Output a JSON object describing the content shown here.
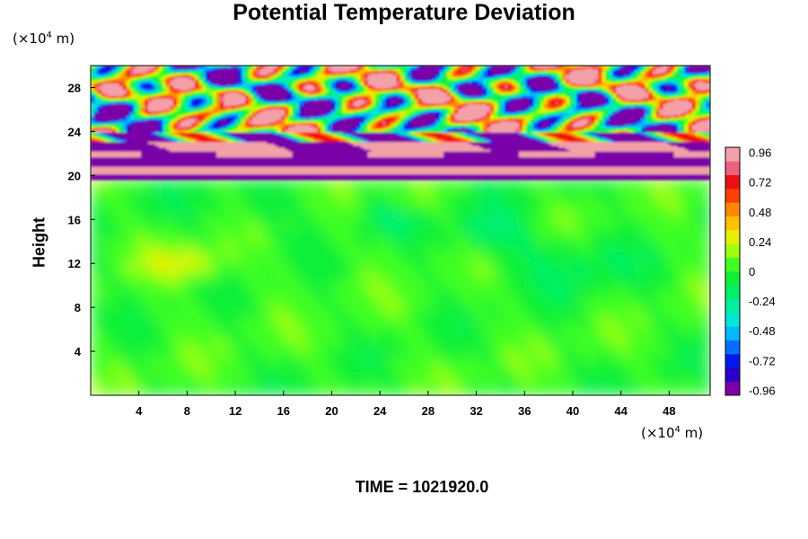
{
  "chart_data": {
    "type": "heatmap",
    "title": "Potential Temperature Deviation",
    "ylabel": "Height",
    "y_unit": [
      "(×10",
      "4",
      " m)"
    ],
    "x_unit": [
      "(×10",
      "4",
      " m)"
    ],
    "xlim": [
      0,
      51.4
    ],
    "ylim": [
      0,
      30
    ],
    "x_ticks": [
      "4",
      "8",
      "12",
      "16",
      "20",
      "24",
      "28",
      "32",
      "36",
      "40",
      "44",
      "48"
    ],
    "y_ticks": [
      "4",
      "8",
      "12",
      "16",
      "20",
      "24",
      "28"
    ],
    "colorbar": {
      "range": [
        -1.0,
        1.0
      ],
      "tick_labels": [
        "0.96",
        "0.72",
        "0.48",
        "0.24",
        "0",
        "-0.24",
        "-0.48",
        "-0.72",
        "-0.96"
      ],
      "colors": [
        "#7a00a8",
        "#2a00c8",
        "#0018f0",
        "#0070ff",
        "#00b8ff",
        "#00e8d8",
        "#00f0a0",
        "#00f068",
        "#10f038",
        "#40ff20",
        "#a0ff10",
        "#e8f000",
        "#ffc000",
        "#ff8800",
        "#ff4000",
        "#ee1010",
        "#f06080",
        "#f4a0a8"
      ]
    },
    "field_summary": [
      {
        "region": "height 0-19.5",
        "description": "near-zero deviation (green) with weak cyan and yellow filaments"
      },
      {
        "region": "height 19.5-30",
        "description": "strong alternating layers of pink (+0.96) and purple (-0.96) with multicolor gravity-wave cells"
      }
    ]
  },
  "footer": {
    "time_label": "TIME = 1021920.0"
  }
}
